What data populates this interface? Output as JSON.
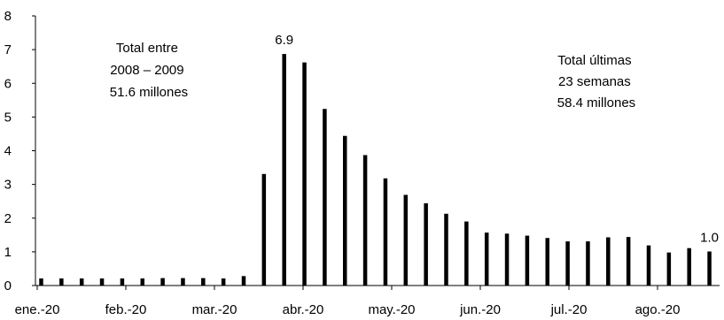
{
  "chart_data": {
    "type": "bar",
    "ylim": [
      0,
      8
    ],
    "yticks": [
      "0",
      "1",
      "2",
      "3",
      "4",
      "5",
      "6",
      "7",
      "8"
    ],
    "x_tick_labels": [
      "ene.-20",
      "feb.-20",
      "mar.-20",
      "abr.-20",
      "may.-20",
      "jun.-20",
      "jul.-20",
      "ago.-20"
    ],
    "values": [
      0.21,
      0.21,
      0.21,
      0.21,
      0.21,
      0.21,
      0.22,
      0.22,
      0.22,
      0.21,
      0.28,
      3.31,
      6.87,
      6.62,
      5.24,
      4.44,
      3.87,
      3.18,
      2.69,
      2.44,
      2.13,
      1.9,
      1.57,
      1.54,
      1.48,
      1.41,
      1.31,
      1.31,
      1.43,
      1.44,
      1.19,
      0.98,
      1.11,
      1.01
    ],
    "color": "#000000",
    "data_labels": [
      {
        "index": 12,
        "text": "6.9"
      },
      {
        "index": 33,
        "text": "1.0"
      }
    ],
    "annotations": {
      "left": [
        "Total entre",
        "2008 – 2009",
        "51.6 millones"
      ],
      "right": [
        "Total últimas",
        "23 semanas",
        "58.4 millones"
      ]
    }
  }
}
